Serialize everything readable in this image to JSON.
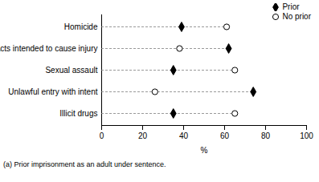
{
  "chart_data": {
    "type": "dot",
    "categories": [
      "Homicide",
      "Acts intended to cause injury",
      "Sexual assault",
      "Unlawful entry with intent",
      "Illicit drugs"
    ],
    "series": [
      {
        "name": "Prior",
        "color": "#000000",
        "marker": "diamond",
        "values": [
          39,
          62,
          35,
          74,
          35
        ]
      },
      {
        "name": "No prior",
        "color": "#000000",
        "marker": "open_circle",
        "values": [
          61,
          38,
          65,
          26,
          65
        ]
      }
    ],
    "xlabel": "%",
    "xlim": [
      0,
      100
    ],
    "xticks": [
      0,
      20,
      40,
      60,
      80,
      100
    ],
    "orientation": "horizontal",
    "legend": "top-right",
    "caption": "(a) Prior imprisonment as an adult under sentence."
  }
}
